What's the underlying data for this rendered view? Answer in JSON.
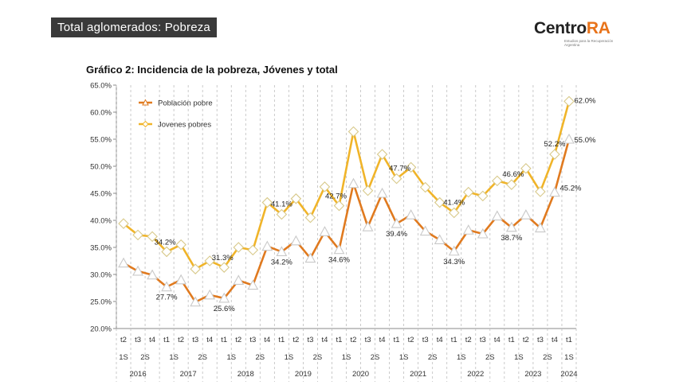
{
  "header": {
    "banner_title": "Total aglomerados: Pobreza",
    "logo_text": "Centro",
    "logo_accent": "RA",
    "logo_tagline": "Estudios para la Recuperación Argentina"
  },
  "chart_data": {
    "type": "line",
    "title": "Gráfico 2: Incidencia de la pobreza, Jóvenes y total",
    "ylim": [
      20,
      65
    ],
    "yticks": [
      "20.0%",
      "25.0%",
      "30.0%",
      "35.0%",
      "40.0%",
      "45.0%",
      "50.0%",
      "55.0%",
      "60.0%",
      "65.0%"
    ],
    "grid": "vertical",
    "legend_position": "top-left",
    "quarters": [
      "t2",
      "t3",
      "t4",
      "t1",
      "t2",
      "t3",
      "t4",
      "t1",
      "t2",
      "t3",
      "t4",
      "t1",
      "t2",
      "t3",
      "t4",
      "t1",
      "t2",
      "t3",
      "t4",
      "t1",
      "t2",
      "t3",
      "t4",
      "t1",
      "t2",
      "t3",
      "t4",
      "t1",
      "t2",
      "t3",
      "t4",
      "t1"
    ],
    "semesters": [
      {
        "label": "1S",
        "start": 0,
        "end": 0
      },
      {
        "label": "2S",
        "start": 1,
        "end": 2
      },
      {
        "label": "1S",
        "start": 3,
        "end": 4
      },
      {
        "label": "2S",
        "start": 5,
        "end": 6
      },
      {
        "label": "1S",
        "start": 7,
        "end": 8
      },
      {
        "label": "2S",
        "start": 9,
        "end": 10
      },
      {
        "label": "1S",
        "start": 11,
        "end": 12
      },
      {
        "label": "2S",
        "start": 13,
        "end": 14
      },
      {
        "label": "1S",
        "start": 15,
        "end": 16
      },
      {
        "label": "2S",
        "start": 17,
        "end": 18
      },
      {
        "label": "1S",
        "start": 19,
        "end": 20
      },
      {
        "label": "2S",
        "start": 21,
        "end": 22
      },
      {
        "label": "1S",
        "start": 23,
        "end": 24
      },
      {
        "label": "2S",
        "start": 25,
        "end": 26
      },
      {
        "label": "1S",
        "start": 27,
        "end": 28
      },
      {
        "label": "2S",
        "start": 29,
        "end": 30
      },
      {
        "label": "1S",
        "start": 31,
        "end": 31
      }
    ],
    "years": [
      {
        "label": "2016",
        "start": 0,
        "end": 2
      },
      {
        "label": "2017",
        "start": 3,
        "end": 6
      },
      {
        "label": "2018",
        "start": 7,
        "end": 10
      },
      {
        "label": "2019",
        "start": 11,
        "end": 14
      },
      {
        "label": "2020",
        "start": 15,
        "end": 18
      },
      {
        "label": "2021",
        "start": 19,
        "end": 22
      },
      {
        "label": "2022",
        "start": 23,
        "end": 26
      },
      {
        "label": "2023",
        "start": 27,
        "end": 30
      },
      {
        "label": "2024",
        "start": 31,
        "end": 31
      }
    ],
    "series": [
      {
        "name": "Población pobre",
        "color": "#e07a1f",
        "marker": "triangle",
        "values": [
          32.1,
          30.6,
          29.9,
          27.7,
          29.0,
          24.9,
          26.2,
          25.6,
          28.9,
          28.0,
          35.2,
          34.2,
          36.2,
          33.0,
          37.9,
          34.6,
          46.8,
          38.8,
          45.0,
          39.4,
          41.0,
          38.0,
          36.4,
          34.3,
          38.2,
          37.5,
          40.8,
          38.7,
          41.0,
          38.6,
          45.2,
          55.0
        ],
        "labels": [
          {
            "index": 3,
            "text": "27.7%"
          },
          {
            "index": 7,
            "text": "25.6%"
          },
          {
            "index": 11,
            "text": "34.2%"
          },
          {
            "index": 15,
            "text": "34.6%"
          },
          {
            "index": 19,
            "text": "39.4%"
          },
          {
            "index": 23,
            "text": "34.3%"
          },
          {
            "index": 27,
            "text": "38.7%"
          },
          {
            "index": 30,
            "text": "45.2%"
          },
          {
            "index": 31,
            "text": "55.0%"
          }
        ]
      },
      {
        "name": "Jovenes pobres",
        "color": "#f0b429",
        "marker": "diamond",
        "values": [
          39.4,
          37.3,
          37.0,
          34.2,
          35.5,
          31.0,
          32.5,
          31.3,
          35.0,
          34.5,
          43.3,
          41.1,
          44.0,
          40.5,
          46.2,
          42.7,
          56.4,
          45.5,
          52.2,
          47.7,
          49.8,
          46.1,
          43.3,
          41.4,
          45.2,
          44.5,
          47.3,
          46.6,
          49.6,
          45.3,
          52.2,
          62.0
        ],
        "labels": [
          {
            "index": 3,
            "text": "34.2%"
          },
          {
            "index": 7,
            "text": "31.3%"
          },
          {
            "index": 11,
            "text": "41.1%"
          },
          {
            "index": 15,
            "text": "42.7%"
          },
          {
            "index": 19,
            "text": "47.7%"
          },
          {
            "index": 23,
            "text": "41.4%"
          },
          {
            "index": 27,
            "text": "46.6%"
          },
          {
            "index": 30,
            "text": "52.2%"
          },
          {
            "index": 31,
            "text": "62.0%"
          }
        ]
      }
    ]
  }
}
